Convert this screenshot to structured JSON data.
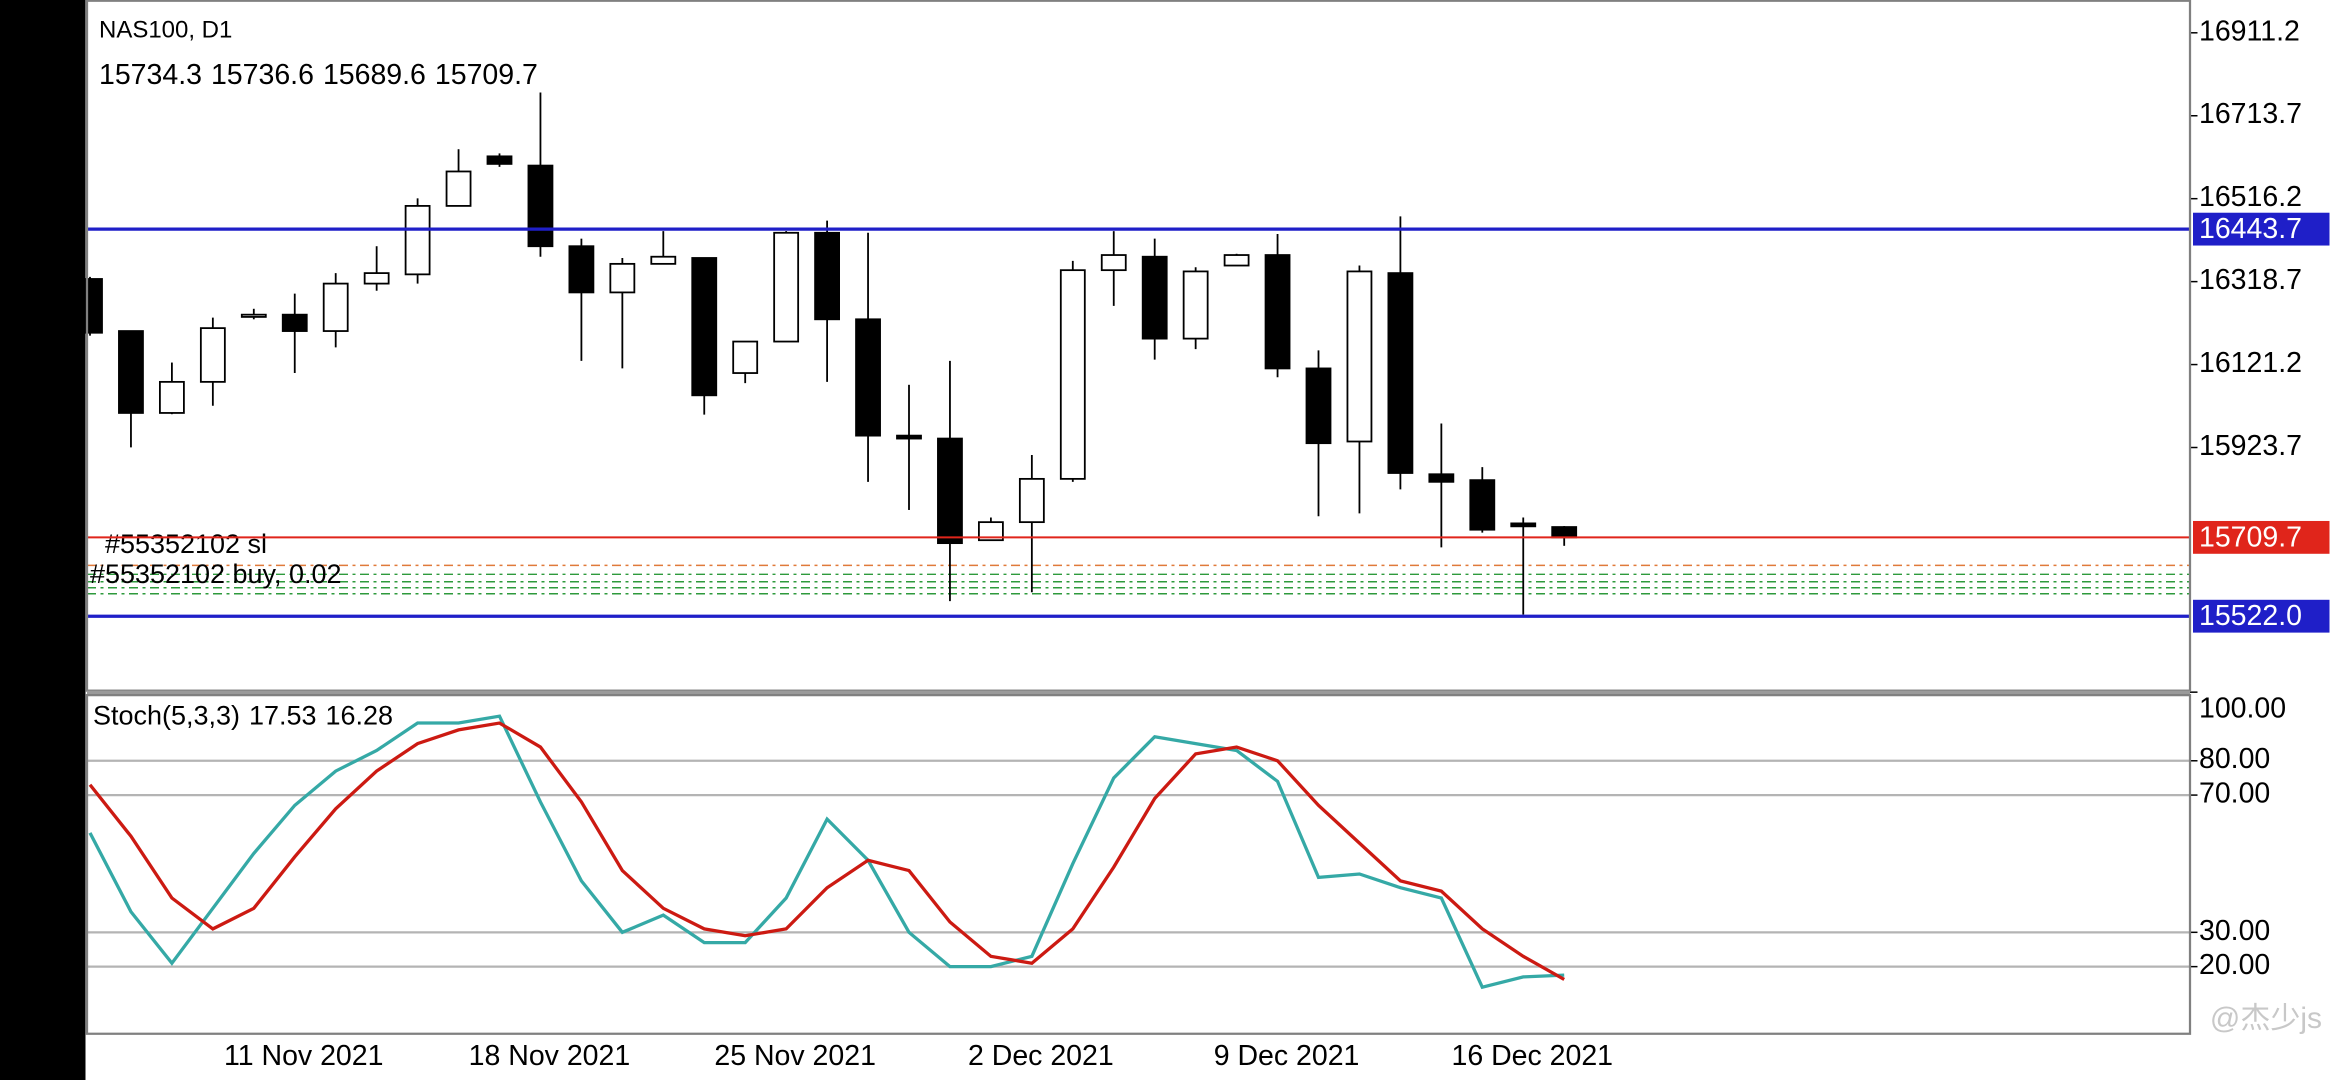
{
  "chart_data": [
    {
      "type": "candlestick",
      "title": "NAS100, D1",
      "categories": [
        null,
        null,
        null,
        null,
        null,
        "11 Nov 2021",
        null,
        null,
        null,
        null,
        null,
        "18 Nov 2021",
        null,
        null,
        null,
        null,
        null,
        "25 Nov 2021",
        null,
        null,
        null,
        null,
        null,
        "2 Dec 2021",
        null,
        null,
        null,
        null,
        null,
        "9 Dec 2021",
        null,
        null,
        null,
        null,
        null,
        "16 Dec 2021",
        null
      ],
      "open": [
        16325,
        16201,
        16006,
        16080,
        16237,
        16240,
        16201,
        16314,
        16336,
        16499,
        16617,
        16595,
        16403,
        16293,
        16361,
        16375,
        16101,
        16176,
        16435,
        16229,
        15952,
        15945,
        15703,
        15746,
        15849,
        16346,
        16378,
        16183,
        16357,
        16382,
        16112,
        15938,
        16339,
        15860,
        15846,
        15743,
        15734.3
      ],
      "high": [
        16330,
        16201,
        16126,
        16233,
        16254,
        16290,
        16339,
        16403,
        16517,
        16634,
        16624,
        16769,
        16421,
        16375,
        16439,
        16375,
        16176,
        16439,
        16464,
        16435,
        16073,
        16130,
        15757,
        15906,
        16368,
        16439,
        16421,
        16353,
        16385,
        16432,
        16155,
        16357,
        16474,
        15981,
        15877,
        15757,
        15736.6
      ],
      "low": [
        16190,
        15924,
        16003,
        16023,
        16229,
        16101,
        16162,
        16297,
        16314,
        16499,
        16592,
        16378,
        16130,
        16112,
        16361,
        16002,
        16077,
        16176,
        16080,
        15842,
        15775,
        15558,
        15703,
        15579,
        15842,
        16261,
        16133,
        16158,
        16357,
        16091,
        15760,
        15767,
        15824,
        15686,
        15721,
        15526,
        15689.6
      ],
      "close": [
        16197,
        16006,
        16080,
        16208,
        16240,
        16201,
        16314,
        16339,
        16499,
        16581,
        16599,
        16403,
        16293,
        16361,
        16378,
        16048,
        16176,
        16435,
        16229,
        15952,
        15945,
        15696,
        15746,
        15849,
        16346,
        16382,
        16183,
        16343,
        16382,
        16112,
        15934,
        16343,
        15863,
        15842,
        15728,
        15736,
        15709.7
      ],
      "up_color": "#ffffff",
      "down_color": "#000000",
      "ylim": [
        15344.7,
        16989.3
      ],
      "yticks": [
        16911.2,
        16713.7,
        16516.2,
        16318.7,
        16121.2,
        15923.7
      ],
      "hlines": [
        {
          "value": 16443.7,
          "label": "16443.7",
          "color": "#1f1fc8"
        },
        {
          "value": 15709.7,
          "label": "15709.7",
          "color": "#e0251b"
        },
        {
          "value": 15522.0,
          "label": "15522.0",
          "color": "#1f1fc8"
        }
      ],
      "annotations": [
        "#55352102 sl",
        "#55352102 buy, 0.02"
      ]
    },
    {
      "type": "line",
      "title": "Stoch(5,3,3)",
      "series": [
        {
          "color": "#35a9a6",
          "values": [
            59,
            36,
            21,
            37,
            53,
            67,
            77,
            83,
            91,
            91,
            93,
            68,
            45,
            30,
            35,
            27,
            27,
            40,
            63,
            51,
            30,
            20,
            20,
            23,
            50,
            75,
            87,
            85,
            83,
            74,
            46,
            47,
            43,
            40,
            14,
            17,
            17.53
          ]
        },
        {
          "color": "#cc1a12",
          "values": [
            73,
            58,
            40,
            31,
            37,
            52,
            66,
            77,
            85,
            89,
            91,
            84,
            68,
            48,
            37,
            31,
            29,
            31,
            43,
            51,
            48,
            33,
            23,
            21,
            31,
            49,
            69,
            82,
            84,
            80,
            67,
            56,
            45,
            42,
            31,
            23,
            16.28
          ]
        }
      ],
      "ylim": [
        0,
        100
      ],
      "yticks": [
        {
          "value": 100,
          "label": "100.00"
        },
        {
          "value": 80,
          "label": "80.00"
        },
        {
          "value": 70,
          "label": "70.00"
        },
        {
          "value": 30,
          "label": "30.00"
        },
        {
          "value": 20,
          "label": "20.00"
        }
      ]
    }
  ],
  "watermark": "@杰少js"
}
